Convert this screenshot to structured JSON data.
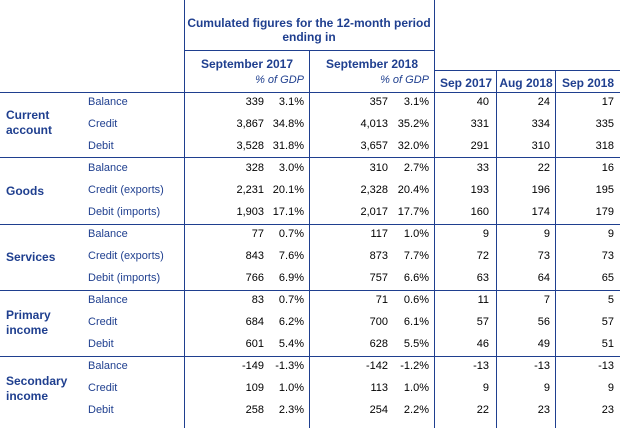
{
  "header": {
    "cumulated_title": "Cumulated figures for the 12-month period ending in",
    "col_sep2017": "September 2017",
    "col_sep2018": "September 2018",
    "pct_gdp": "% of GDP",
    "monthly": [
      "Sep 2017",
      "Aug 2018",
      "Sep 2018"
    ]
  },
  "groups": [
    {
      "name": "Current account",
      "rows": [
        {
          "label": "Balance",
          "v": [
            "339",
            "3.1%",
            "357",
            "3.1%",
            "40",
            "24",
            "17"
          ]
        },
        {
          "label": "Credit",
          "v": [
            "3,867",
            "34.8%",
            "4,013",
            "35.2%",
            "331",
            "334",
            "335"
          ]
        },
        {
          "label": "Debit",
          "v": [
            "3,528",
            "31.8%",
            "3,657",
            "32.0%",
            "291",
            "310",
            "318"
          ]
        }
      ]
    },
    {
      "name": "Goods",
      "rows": [
        {
          "label": "Balance",
          "v": [
            "328",
            "3.0%",
            "310",
            "2.7%",
            "33",
            "22",
            "16"
          ]
        },
        {
          "label": "Credit (exports)",
          "v": [
            "2,231",
            "20.1%",
            "2,328",
            "20.4%",
            "193",
            "196",
            "195"
          ]
        },
        {
          "label": "Debit (imports)",
          "v": [
            "1,903",
            "17.1%",
            "2,017",
            "17.7%",
            "160",
            "174",
            "179"
          ]
        }
      ]
    },
    {
      "name": "Services",
      "rows": [
        {
          "label": "Balance",
          "v": [
            "77",
            "0.7%",
            "117",
            "1.0%",
            "9",
            "9",
            "9"
          ]
        },
        {
          "label": "Credit (exports)",
          "v": [
            "843",
            "7.6%",
            "873",
            "7.7%",
            "72",
            "73",
            "73"
          ]
        },
        {
          "label": "Debit (imports)",
          "v": [
            "766",
            "6.9%",
            "757",
            "6.6%",
            "63",
            "64",
            "65"
          ]
        }
      ]
    },
    {
      "name": "Primary income",
      "rows": [
        {
          "label": "Balance",
          "v": [
            "83",
            "0.7%",
            "71",
            "0.6%",
            "11",
            "7",
            "5"
          ]
        },
        {
          "label": "Credit",
          "v": [
            "684",
            "6.2%",
            "700",
            "6.1%",
            "57",
            "56",
            "57"
          ]
        },
        {
          "label": "Debit",
          "v": [
            "601",
            "5.4%",
            "628",
            "5.5%",
            "46",
            "49",
            "51"
          ]
        }
      ]
    },
    {
      "name": "Secondary income",
      "rows": [
        {
          "label": "Balance",
          "v": [
            "-149",
            "-1.3%",
            "-142",
            "-1.2%",
            "-13",
            "-13",
            "-13"
          ]
        },
        {
          "label": "Credit",
          "v": [
            "109",
            "1.0%",
            "113",
            "1.0%",
            "9",
            "9",
            "9"
          ]
        },
        {
          "label": "Debit",
          "v": [
            "258",
            "2.3%",
            "254",
            "2.2%",
            "22",
            "23",
            "23"
          ]
        }
      ]
    }
  ]
}
